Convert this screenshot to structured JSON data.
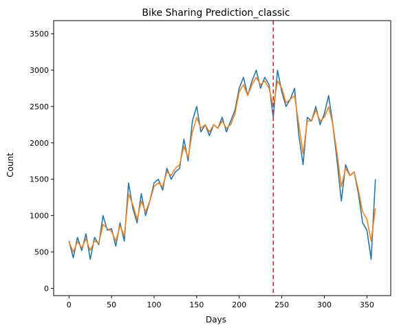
{
  "chart_data": {
    "type": "line",
    "title": "Bike Sharing Prediction_classic",
    "xlabel": "Days",
    "ylabel": "Count",
    "xlim": [
      -18,
      378
    ],
    "ylim": [
      -100,
      3680
    ],
    "xticks": [
      0,
      50,
      100,
      150,
      200,
      250,
      300,
      350
    ],
    "yticks": [
      0,
      500,
      1000,
      1500,
      2000,
      2500,
      3000,
      3500
    ],
    "legend": "none",
    "grid": false,
    "vline": {
      "x": 240,
      "style": "dashed",
      "color": "#d62728"
    },
    "colors": {
      "actual": "#1f77b4",
      "prediction": "#ff7f0e"
    },
    "series": [
      {
        "values_sampled_every_5_days": true,
        "x": [
          0,
          5,
          10,
          15,
          20,
          25,
          30,
          35,
          40,
          45,
          50,
          55,
          60,
          65,
          70,
          75,
          80,
          85,
          90,
          95,
          100,
          105,
          110,
          115,
          120,
          125,
          130,
          135,
          140,
          145,
          150,
          155,
          160,
          165,
          170,
          175,
          180,
          185,
          190,
          195,
          200,
          205,
          210,
          215,
          220,
          225,
          230,
          235,
          240,
          245,
          250,
          255,
          260,
          265,
          270,
          275,
          280,
          285,
          290,
          295,
          300,
          305,
          310,
          315,
          320,
          325,
          330,
          335,
          340,
          345,
          350,
          355,
          360
        ],
        "values": [
          650,
          420,
          700,
          520,
          750,
          400,
          700,
          600,
          1000,
          800,
          820,
          580,
          900,
          650,
          1450,
          1100,
          900,
          1300,
          1000,
          1200,
          1450,
          1500,
          1350,
          1650,
          1500,
          1600,
          1650,
          2050,
          1750,
          2300,
          2500,
          2150,
          2250,
          2100,
          2250,
          2200,
          2350,
          2150,
          2300,
          2450,
          2750,
          2900,
          2650,
          2850,
          3000,
          2750,
          2900,
          2800,
          2350,
          3000,
          2700,
          2500,
          2600,
          2750,
          2100,
          1700,
          2350,
          2300,
          2500,
          2250,
          2400,
          2650,
          2250,
          1750,
          1200,
          1700,
          1550,
          1600,
          1300,
          900,
          800,
          400,
          1500
        ]
      },
      {
        "values_sampled_every_5_days": true,
        "x": [
          0,
          5,
          10,
          15,
          20,
          25,
          30,
          35,
          40,
          45,
          50,
          55,
          60,
          65,
          70,
          75,
          80,
          85,
          90,
          95,
          100,
          105,
          110,
          115,
          120,
          125,
          130,
          135,
          140,
          145,
          150,
          155,
          160,
          165,
          170,
          175,
          180,
          185,
          190,
          195,
          200,
          205,
          210,
          215,
          220,
          225,
          230,
          235,
          240,
          245,
          250,
          255,
          260,
          265,
          270,
          275,
          280,
          285,
          290,
          295,
          300,
          305,
          310,
          315,
          320,
          325,
          330,
          335,
          340,
          345,
          350,
          355,
          360
        ],
        "values": [
          640,
          500,
          640,
          560,
          680,
          520,
          650,
          620,
          880,
          820,
          780,
          650,
          860,
          720,
          1300,
          1150,
          950,
          1200,
          1050,
          1200,
          1400,
          1450,
          1400,
          1600,
          1550,
          1650,
          1700,
          1950,
          1800,
          2150,
          2350,
          2200,
          2250,
          2150,
          2250,
          2200,
          2300,
          2200,
          2250,
          2400,
          2700,
          2800,
          2650,
          2800,
          2900,
          2800,
          2850,
          2750,
          2500,
          2850,
          2750,
          2550,
          2600,
          2650,
          2250,
          1850,
          2300,
          2300,
          2450,
          2300,
          2350,
          2500,
          2250,
          1850,
          1400,
          1650,
          1550,
          1600,
          1350,
          1050,
          950,
          650,
          1100
        ]
      }
    ]
  }
}
